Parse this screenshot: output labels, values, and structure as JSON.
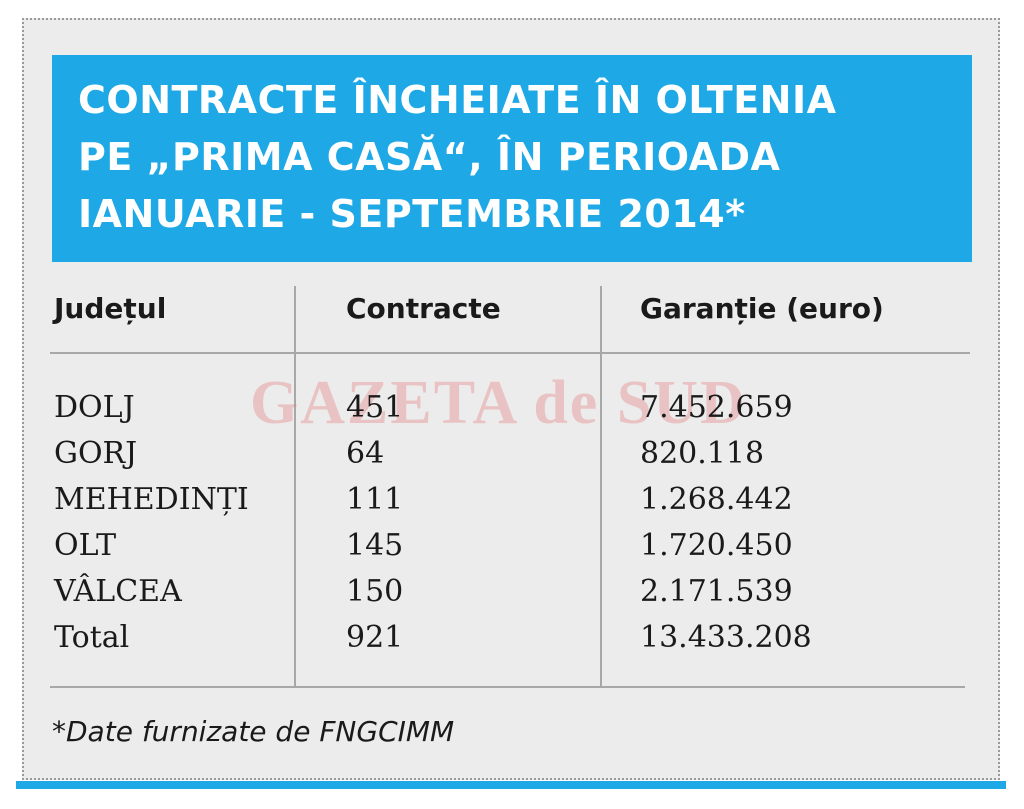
{
  "chart_data": {
    "type": "table",
    "title_lines": [
      "CONTRACTE ÎNCHEIATE ÎN OLTENIA",
      "PE „PRIMA CASĂ“, ÎN PERIOADA",
      "IANUARIE - SEPTEMBRIE 2014*"
    ],
    "columns": [
      "Județul",
      "Contracte",
      "Garanție (euro)"
    ],
    "rows": [
      {
        "judet": "DOLJ",
        "contracte": "451",
        "garantie": "7.452.659"
      },
      {
        "judet": "GORJ",
        "contracte": "64",
        "garantie": "820.118"
      },
      {
        "judet": "MEHEDINȚI",
        "contracte": "111",
        "garantie": "1.268.442"
      },
      {
        "judet": "OLT",
        "contracte": "145",
        "garantie": "1.720.450"
      },
      {
        "judet": "VÂLCEA",
        "contracte": "150",
        "garantie": "2.171.539"
      },
      {
        "judet": "Total",
        "contracte": "921",
        "garantie": "13.433.208"
      }
    ],
    "footnote": "*Date furnizate de FNGCIMM"
  },
  "watermark": "GAZETA de SUD",
  "colors": {
    "accent": "#1ea8e6",
    "panel_background": "#ececec",
    "text": "#1a1a1a",
    "rule": "#a8a8a8"
  }
}
